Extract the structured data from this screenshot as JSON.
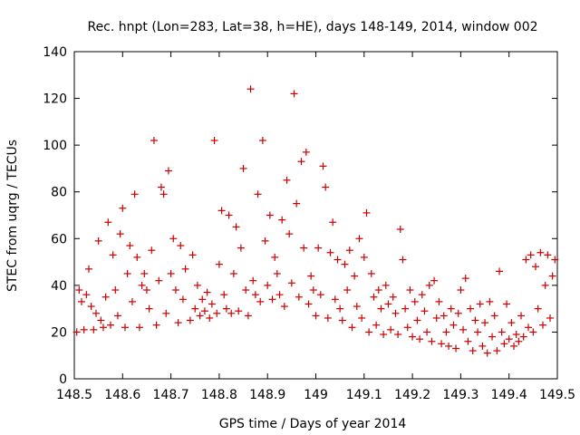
{
  "chart_data": {
    "type": "scatter",
    "title": "Rec. hnpt (Lon=283, Lat=38, h=HE), days 148-149, 2014, window 002",
    "xlabel": "GPS time / Days of year 2014",
    "ylabel": "STEC from uqrg / TECUs",
    "xlim": [
      148.5,
      149.5
    ],
    "ylim": [
      0,
      140
    ],
    "xticks": [
      "148.5",
      "148.6",
      "148.7",
      "148.8",
      "148.9",
      "149",
      "149.1",
      "149.2",
      "149.3",
      "149.4",
      "149.5"
    ],
    "yticks": [
      "0",
      "20",
      "40",
      "60",
      "80",
      "100",
      "120",
      "140"
    ],
    "grid": false,
    "marker": "+",
    "color": "#cc0000",
    "series": [
      {
        "points": [
          [
            148.505,
            20
          ],
          [
            148.51,
            38
          ],
          [
            148.515,
            33
          ],
          [
            148.52,
            21
          ],
          [
            148.525,
            36
          ],
          [
            148.53,
            47
          ],
          [
            148.535,
            31
          ],
          [
            148.54,
            21
          ],
          [
            148.545,
            28
          ],
          [
            148.55,
            59
          ],
          [
            148.555,
            25
          ],
          [
            148.56,
            22
          ],
          [
            148.565,
            35
          ],
          [
            148.57,
            67
          ],
          [
            148.575,
            23
          ],
          [
            148.58,
            53
          ],
          [
            148.585,
            38
          ],
          [
            148.59,
            27
          ],
          [
            148.595,
            62
          ],
          [
            148.6,
            73
          ],
          [
            148.605,
            22
          ],
          [
            148.61,
            45
          ],
          [
            148.615,
            57
          ],
          [
            148.62,
            33
          ],
          [
            148.625,
            79
          ],
          [
            148.63,
            52
          ],
          [
            148.635,
            22
          ],
          [
            148.64,
            40
          ],
          [
            148.645,
            45
          ],
          [
            148.65,
            38
          ],
          [
            148.655,
            30
          ],
          [
            148.66,
            55
          ],
          [
            148.665,
            102
          ],
          [
            148.67,
            23
          ],
          [
            148.675,
            42
          ],
          [
            148.68,
            82
          ],
          [
            148.685,
            79
          ],
          [
            148.69,
            28
          ],
          [
            148.695,
            89
          ],
          [
            148.7,
            45
          ],
          [
            148.705,
            60
          ],
          [
            148.71,
            38
          ],
          [
            148.715,
            24
          ],
          [
            148.72,
            57
          ],
          [
            148.725,
            34
          ],
          [
            148.73,
            47
          ],
          [
            148.74,
            25
          ],
          [
            148.745,
            53
          ],
          [
            148.75,
            30
          ],
          [
            148.755,
            40
          ],
          [
            148.76,
            27
          ],
          [
            148.765,
            34
          ],
          [
            148.77,
            29
          ],
          [
            148.775,
            37
          ],
          [
            148.78,
            26
          ],
          [
            148.785,
            32
          ],
          [
            148.79,
            102
          ],
          [
            148.795,
            28
          ],
          [
            148.8,
            49
          ],
          [
            148.805,
            72
          ],
          [
            148.81,
            36
          ],
          [
            148.815,
            30
          ],
          [
            148.82,
            70
          ],
          [
            148.825,
            28
          ],
          [
            148.83,
            45
          ],
          [
            148.835,
            65
          ],
          [
            148.84,
            29
          ],
          [
            148.845,
            56
          ],
          [
            148.85,
            90
          ],
          [
            148.855,
            38
          ],
          [
            148.86,
            27
          ],
          [
            148.865,
            124
          ],
          [
            148.87,
            42
          ],
          [
            148.875,
            36
          ],
          [
            148.88,
            79
          ],
          [
            148.885,
            33
          ],
          [
            148.89,
            102
          ],
          [
            148.895,
            59
          ],
          [
            148.9,
            40
          ],
          [
            148.905,
            70
          ],
          [
            148.91,
            34
          ],
          [
            148.915,
            52
          ],
          [
            148.92,
            45
          ],
          [
            148.925,
            36
          ],
          [
            148.93,
            68
          ],
          [
            148.935,
            31
          ],
          [
            148.94,
            85
          ],
          [
            148.945,
            62
          ],
          [
            148.95,
            41
          ],
          [
            148.955,
            122
          ],
          [
            148.96,
            75
          ],
          [
            148.965,
            35
          ],
          [
            148.97,
            93
          ],
          [
            148.975,
            56
          ],
          [
            148.98,
            97
          ],
          [
            148.985,
            32
          ],
          [
            148.99,
            44
          ],
          [
            148.995,
            38
          ],
          [
            149.0,
            27
          ],
          [
            149.005,
            56
          ],
          [
            149.01,
            36
          ],
          [
            149.015,
            91
          ],
          [
            149.02,
            82
          ],
          [
            149.025,
            26
          ],
          [
            149.03,
            54
          ],
          [
            149.035,
            67
          ],
          [
            149.04,
            34
          ],
          [
            149.045,
            51
          ],
          [
            149.05,
            30
          ],
          [
            149.055,
            25
          ],
          [
            149.06,
            49
          ],
          [
            149.065,
            38
          ],
          [
            149.07,
            55
          ],
          [
            149.075,
            22
          ],
          [
            149.08,
            44
          ],
          [
            149.085,
            31
          ],
          [
            149.09,
            60
          ],
          [
            149.095,
            26
          ],
          [
            149.1,
            52
          ],
          [
            149.105,
            71
          ],
          [
            149.11,
            20
          ],
          [
            149.115,
            45
          ],
          [
            149.12,
            35
          ],
          [
            149.125,
            23
          ],
          [
            149.13,
            38
          ],
          [
            149.135,
            30
          ],
          [
            149.14,
            19
          ],
          [
            149.145,
            40
          ],
          [
            149.15,
            32
          ],
          [
            149.155,
            21
          ],
          [
            149.16,
            35
          ],
          [
            149.165,
            28
          ],
          [
            149.17,
            19
          ],
          [
            149.175,
            64
          ],
          [
            149.18,
            51
          ],
          [
            149.185,
            30
          ],
          [
            149.19,
            22
          ],
          [
            149.195,
            38
          ],
          [
            149.2,
            18
          ],
          [
            149.205,
            33
          ],
          [
            149.21,
            25
          ],
          [
            149.215,
            17
          ],
          [
            149.22,
            36
          ],
          [
            149.225,
            29
          ],
          [
            149.23,
            20
          ],
          [
            149.235,
            40
          ],
          [
            149.24,
            16
          ],
          [
            149.245,
            42
          ],
          [
            149.25,
            26
          ],
          [
            149.255,
            33
          ],
          [
            149.26,
            15
          ],
          [
            149.265,
            27
          ],
          [
            149.27,
            20
          ],
          [
            149.275,
            14
          ],
          [
            149.28,
            30
          ],
          [
            149.285,
            23
          ],
          [
            149.29,
            13
          ],
          [
            149.295,
            28
          ],
          [
            149.3,
            38
          ],
          [
            149.305,
            21
          ],
          [
            149.31,
            43
          ],
          [
            149.315,
            16
          ],
          [
            149.32,
            30
          ],
          [
            149.325,
            12
          ],
          [
            149.33,
            25
          ],
          [
            149.335,
            20
          ],
          [
            149.34,
            32
          ],
          [
            149.345,
            14
          ],
          [
            149.35,
            24
          ],
          [
            149.355,
            11
          ],
          [
            149.36,
            33
          ],
          [
            149.365,
            18
          ],
          [
            149.37,
            27
          ],
          [
            149.375,
            12
          ],
          [
            149.38,
            46
          ],
          [
            149.385,
            20
          ],
          [
            149.39,
            15
          ],
          [
            149.395,
            32
          ],
          [
            149.4,
            17
          ],
          [
            149.405,
            24
          ],
          [
            149.41,
            14
          ],
          [
            149.415,
            19
          ],
          [
            149.42,
            16
          ],
          [
            149.425,
            27
          ],
          [
            149.43,
            18
          ],
          [
            149.435,
            51
          ],
          [
            149.44,
            22
          ],
          [
            149.445,
            53
          ],
          [
            149.45,
            20
          ],
          [
            149.455,
            48
          ],
          [
            149.46,
            30
          ],
          [
            149.465,
            54
          ],
          [
            149.47,
            23
          ],
          [
            149.475,
            40
          ],
          [
            149.48,
            53
          ],
          [
            149.485,
            26
          ],
          [
            149.49,
            44
          ],
          [
            149.495,
            51
          ]
        ]
      }
    ]
  }
}
